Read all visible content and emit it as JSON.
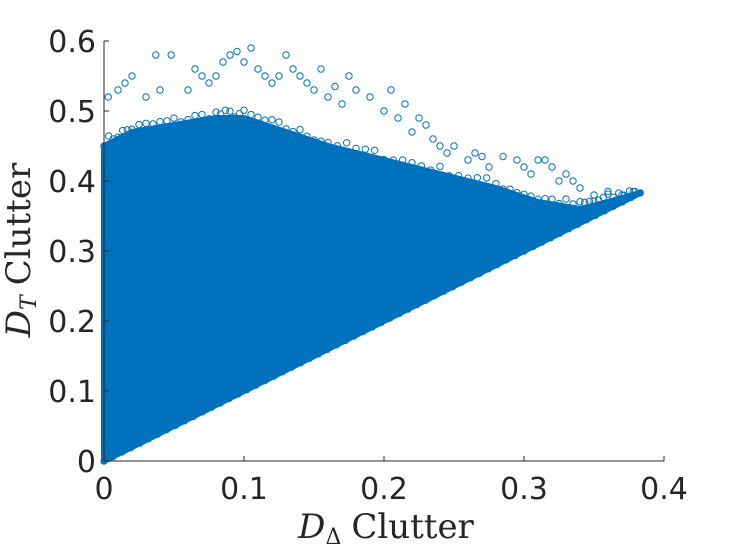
{
  "chart_data": {
    "type": "scatter",
    "title": "",
    "xlabel": {
      "symbol": "D",
      "subscript": "Δ",
      "text": "Clutter"
    },
    "ylabel": {
      "symbol": "D",
      "subscript": "T",
      "text": "Clutter"
    },
    "xlim": [
      0,
      0.4
    ],
    "ylim": [
      0,
      0.6
    ],
    "xticks": [
      0,
      0.1,
      0.2,
      0.3,
      0.4
    ],
    "xtick_labels": [
      "0",
      "0.1",
      "0.2",
      "0.3",
      "0.4"
    ],
    "yticks": [
      0,
      0.1,
      0.2,
      0.3,
      0.4,
      0.5,
      0.6
    ],
    "ytick_labels": [
      "0",
      "0.1",
      "0.2",
      "0.3",
      "0.4",
      "0.5",
      "0.6"
    ],
    "grid": false,
    "marker": "open-circle",
    "color": "#0072BD",
    "series": [
      {
        "name": "clutter",
        "description": "dense cloud bounded below by y = x and above by an envelope",
        "lower_bound_line": [
          [
            0,
            0
          ],
          [
            0.383,
            0.383
          ]
        ],
        "upper_envelope": [
          [
            0,
            0.45
          ],
          [
            0.02,
            0.47
          ],
          [
            0.05,
            0.48
          ],
          [
            0.08,
            0.49
          ],
          [
            0.1,
            0.49
          ],
          [
            0.13,
            0.47
          ],
          [
            0.16,
            0.45
          ],
          [
            0.2,
            0.43
          ],
          [
            0.24,
            0.41
          ],
          [
            0.28,
            0.39
          ],
          [
            0.31,
            0.37
          ],
          [
            0.34,
            0.36
          ],
          [
            0.36,
            0.37
          ],
          [
            0.383,
            0.383
          ]
        ],
        "outliers": [
          [
            0.003,
            0.52
          ],
          [
            0.01,
            0.53
          ],
          [
            0.015,
            0.54
          ],
          [
            0.02,
            0.55
          ],
          [
            0.03,
            0.52
          ],
          [
            0.04,
            0.53
          ],
          [
            0.037,
            0.58
          ],
          [
            0.048,
            0.58
          ],
          [
            0.06,
            0.53
          ],
          [
            0.065,
            0.56
          ],
          [
            0.07,
            0.55
          ],
          [
            0.075,
            0.54
          ],
          [
            0.08,
            0.55
          ],
          [
            0.085,
            0.57
          ],
          [
            0.09,
            0.58
          ],
          [
            0.095,
            0.585
          ],
          [
            0.1,
            0.57
          ],
          [
            0.105,
            0.59
          ],
          [
            0.11,
            0.56
          ],
          [
            0.115,
            0.55
          ],
          [
            0.12,
            0.54
          ],
          [
            0.125,
            0.55
          ],
          [
            0.13,
            0.58
          ],
          [
            0.135,
            0.56
          ],
          [
            0.14,
            0.55
          ],
          [
            0.145,
            0.54
          ],
          [
            0.15,
            0.53
          ],
          [
            0.155,
            0.56
          ],
          [
            0.16,
            0.52
          ],
          [
            0.165,
            0.535
          ],
          [
            0.17,
            0.51
          ],
          [
            0.175,
            0.55
          ],
          [
            0.18,
            0.53
          ],
          [
            0.19,
            0.52
          ],
          [
            0.2,
            0.5
          ],
          [
            0.205,
            0.53
          ],
          [
            0.21,
            0.49
          ],
          [
            0.215,
            0.51
          ],
          [
            0.22,
            0.47
          ],
          [
            0.225,
            0.49
          ],
          [
            0.23,
            0.48
          ],
          [
            0.235,
            0.46
          ],
          [
            0.24,
            0.45
          ],
          [
            0.245,
            0.44
          ],
          [
            0.25,
            0.45
          ],
          [
            0.26,
            0.43
          ],
          [
            0.265,
            0.44
          ],
          [
            0.27,
            0.435
          ],
          [
            0.275,
            0.42
          ],
          [
            0.285,
            0.435
          ],
          [
            0.295,
            0.43
          ],
          [
            0.3,
            0.42
          ],
          [
            0.305,
            0.41
          ],
          [
            0.31,
            0.43
          ],
          [
            0.315,
            0.43
          ],
          [
            0.32,
            0.42
          ],
          [
            0.325,
            0.4
          ],
          [
            0.33,
            0.41
          ],
          [
            0.335,
            0.4
          ],
          [
            0.34,
            0.39
          ],
          [
            0.35,
            0.38
          ],
          [
            0.36,
            0.385
          ],
          [
            0.37,
            0.38
          ],
          [
            0.378,
            0.385
          ]
        ]
      }
    ]
  }
}
